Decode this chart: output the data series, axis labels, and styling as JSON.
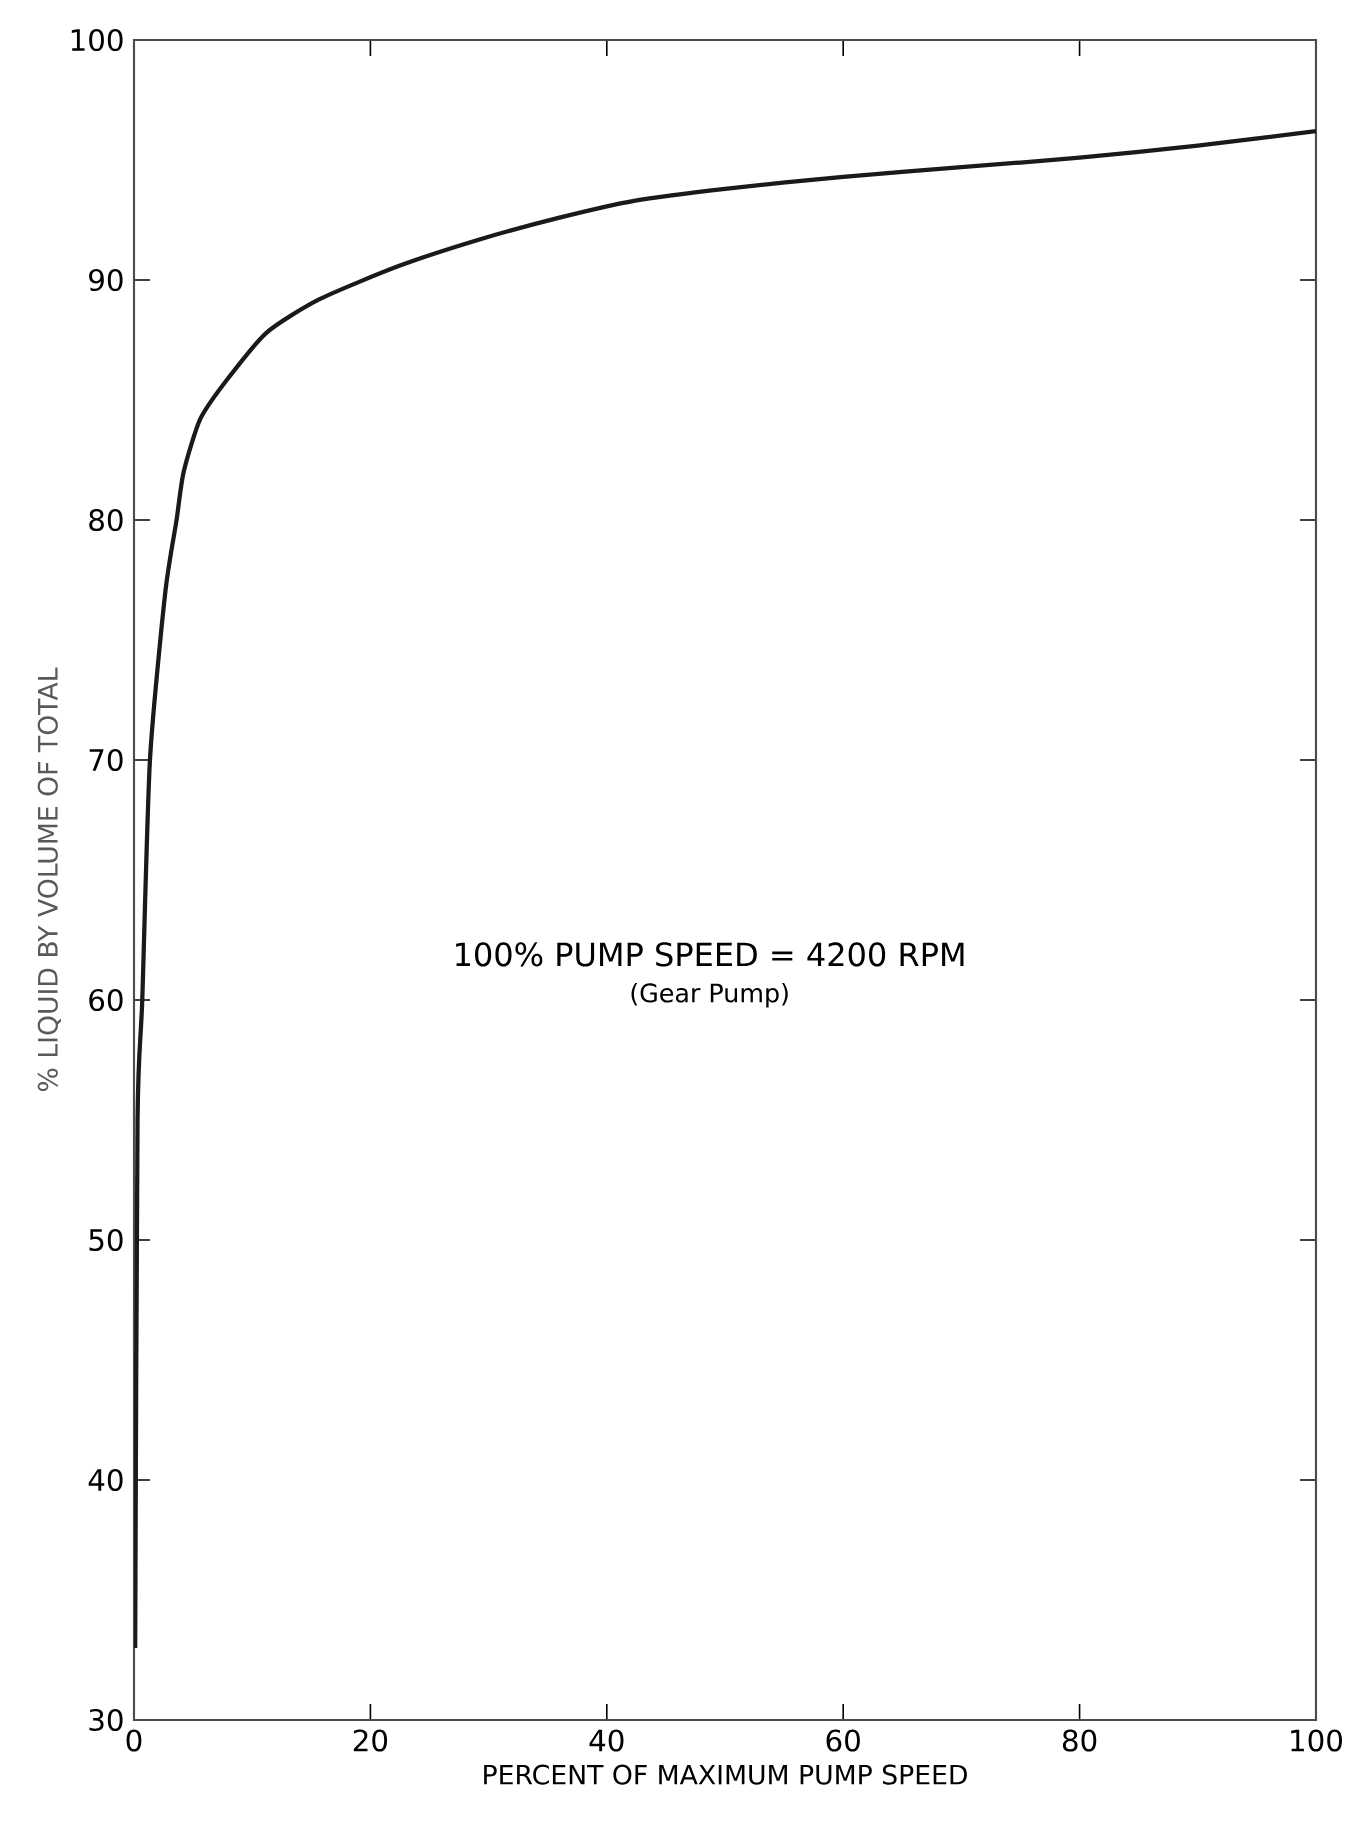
{
  "chart_data": {
    "type": "line",
    "xlabel": "PERCENT OF MAXIMUM PUMP SPEED",
    "ylabel": "% LIQUID BY VOLUME OF TOTAL",
    "annotations": [
      "100% PUMP SPEED = 4200 RPM",
      "(Gear Pump)"
    ],
    "x": [
      0.1,
      0.3,
      0.7,
      1.35,
      2.65,
      3.6,
      4.2,
      5.6,
      7.8,
      11.2,
      15.7,
      22.5,
      29.3,
      36,
      42.3,
      50,
      60,
      70,
      80,
      90,
      100
    ],
    "series": [
      {
        "color": "#1a1a1a",
        "values": [
          33,
          55,
          60,
          70,
          77,
          80,
          82,
          84.2,
          85.8,
          87.8,
          89.2,
          90.6,
          91.7,
          92.6,
          93.3,
          93.8,
          94.3,
          94.7,
          95.1,
          95.6,
          96.2
        ]
      }
    ],
    "xlim": [
      0,
      100
    ],
    "ylim": [
      30,
      100
    ],
    "xticks": [
      0,
      20,
      40,
      60,
      80,
      100
    ],
    "yticks": [
      30,
      40,
      50,
      60,
      70,
      80,
      90,
      100
    ],
    "grid": false,
    "marker": "none",
    "line_style": "solid"
  }
}
